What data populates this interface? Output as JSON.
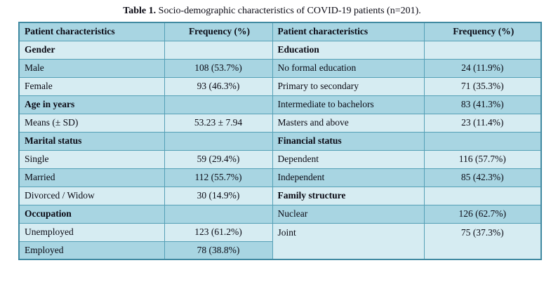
{
  "title": {
    "prefix": "Table 1.",
    "text": " Socio-demographic characteristics of COVID-19 patients (n=201)."
  },
  "table": {
    "columns": [
      "Patient characteristics",
      "Frequency (%)",
      "Patient characteristics",
      "Frequency (%)"
    ],
    "left_rows": [
      {
        "label": "Gender",
        "value": "",
        "section": true
      },
      {
        "label": "Male",
        "value": "108 (53.7%)"
      },
      {
        "label": "Female",
        "value": "93 (46.3%)"
      },
      {
        "label": "Age in years",
        "value": "",
        "section": true
      },
      {
        "label": "Means (± SD)",
        "value": "53.23 ± 7.94"
      },
      {
        "label": "Marital status",
        "value": "",
        "section": true
      },
      {
        "label": "Single",
        "value": "59 (29.4%)"
      },
      {
        "label": "Married",
        "value": "112 (55.7%)"
      },
      {
        "label": "Divorced / Widow",
        "value": "30 (14.9%)"
      },
      {
        "label": "Occupation",
        "value": "",
        "section": true
      },
      {
        "label": "Unemployed",
        "value": "123 (61.2%)"
      },
      {
        "label": "Employed",
        "value": "78 (38.8%)"
      }
    ],
    "right_rows": [
      {
        "label": "Education",
        "value": "",
        "section": true
      },
      {
        "label": "No formal education",
        "value": "24 (11.9%)"
      },
      {
        "label": "Primary to secondary",
        "value": "71 (35.3%)"
      },
      {
        "label": "Intermediate to bachelors",
        "value": "83 (41.3%)"
      },
      {
        "label": "Masters and above",
        "value": "23 (11.4%)"
      },
      {
        "label": "Financial status",
        "value": "",
        "section": true
      },
      {
        "label": "Dependent",
        "value": "116 (57.7%)"
      },
      {
        "label": "Independent",
        "value": "85 (42.3%)"
      },
      {
        "label": "Family structure",
        "value": "",
        "section": true
      },
      {
        "label": "Nuclear",
        "value": "126 (62.7%)"
      },
      {
        "label": "Joint",
        "value": "75 (37.3%)"
      }
    ]
  },
  "colors": {
    "row_light": "#d6ecf2",
    "row_medium": "#a8d5e2",
    "border_inner": "#55a0b6",
    "border_outer": "#4089a1",
    "text": "#0a0a14",
    "background": "#ffffff"
  }
}
